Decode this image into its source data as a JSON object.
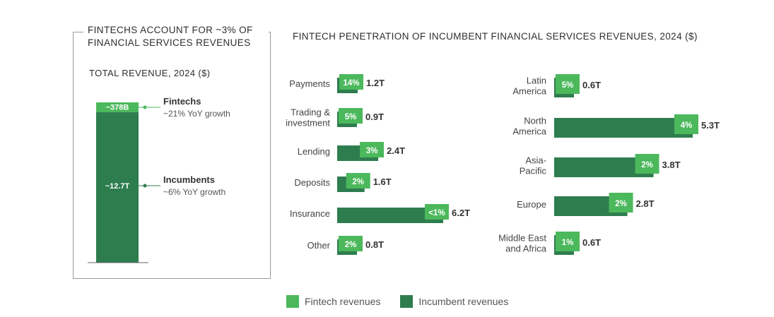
{
  "left_panel": {
    "title": "FINTECHS ACCOUNT FOR ~3% OF FINANCIAL SERVICES REVENUES",
    "subtitle": "TOTAL REVENUE, 2024 ($)"
  },
  "main_title": "FINTECH PENETRATION OF INCUMBENT FINANCIAL SERVICES REVENUES, 2024 ($)",
  "legend": {
    "fintech_label": "Fintech revenues",
    "incumbent_label": "Incumbent revenues"
  },
  "colors": {
    "fintech": "#4CB85C",
    "incumbent": "#2E7D4F"
  },
  "chart_data": [
    {
      "type": "bar",
      "orientation": "vertical-stacked",
      "segments": [
        {
          "name": "Fintechs",
          "value_label": "~378B",
          "value": 0.378,
          "annotation": "~21% YoY growth"
        },
        {
          "name": "Incumbents",
          "value_label": "~12.7T",
          "value": 12.7,
          "annotation": "~6% YoY growth"
        }
      ]
    },
    {
      "type": "bar",
      "orientation": "horizontal",
      "group": "by-product",
      "categories": [
        "Payments",
        "Trading & investment",
        "Lending",
        "Deposits",
        "Insurance",
        "Other"
      ],
      "values": [
        1.2,
        0.9,
        2.4,
        1.6,
        6.2,
        0.8
      ],
      "value_labels": [
        "1.2T",
        "0.9T",
        "2.4T",
        "1.6T",
        "6.2T",
        "0.8T"
      ],
      "penetration_labels": [
        "14%",
        "5%",
        "3%",
        "2%",
        "<1%",
        "2%"
      ]
    },
    {
      "type": "bar",
      "orientation": "horizontal",
      "group": "by-region",
      "categories": [
        "Latin America",
        "North America",
        "Asia-Pacific",
        "Europe",
        "Middle East and Africa"
      ],
      "values": [
        0.6,
        5.3,
        3.8,
        2.8,
        0.6
      ],
      "value_labels": [
        "0.6T",
        "5.3T",
        "3.8T",
        "2.8T",
        "0.6T"
      ],
      "penetration_labels": [
        "5%",
        "4%",
        "2%",
        "2%",
        "1%"
      ]
    }
  ]
}
